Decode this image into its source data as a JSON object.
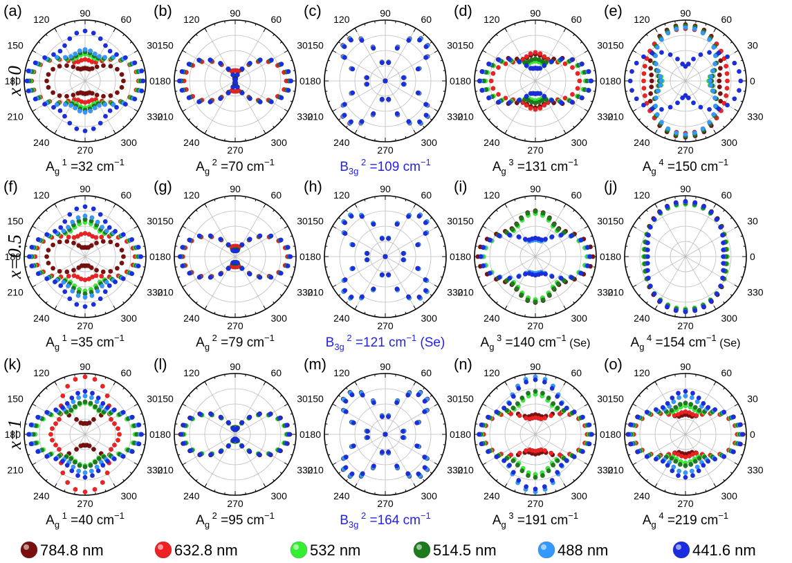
{
  "angle_labels": [
    "0",
    "30",
    "60",
    "90",
    "120",
    "150",
    "180",
    "210",
    "240",
    "270",
    "300",
    "330"
  ],
  "row_labels": [
    "x=0",
    "x=0.5",
    "x=1"
  ],
  "colors": {
    "784.8 nm": "#7a0f0f",
    "632.8 nm": "#ee2222",
    "532 nm": "#33ee33",
    "514.5 nm": "#1d7a1d",
    "488 nm": "#3399ff",
    "441.6 nm": "#1a2ee0",
    "b3g_caption": "#2222ee"
  },
  "legend": [
    "784.8 nm",
    "632.8 nm",
    "532 nm",
    "514.5 nm",
    "488 nm",
    "441.6 nm"
  ],
  "chart_data": [
    {
      "panel": "(a)",
      "row": "x=0",
      "type": "polar-scatter",
      "mode": "Ag",
      "sup": "1",
      "value": "32",
      "unit": "cm",
      "note": "",
      "caption_color": "#000000",
      "shape": "ag1",
      "series": [
        {
          "name": "784.8 nm",
          "a": 0.62,
          "b": 0.18
        },
        {
          "name": "632.8 nm",
          "a": 0.88,
          "b": 0.33
        },
        {
          "name": "532 nm",
          "a": 0.9,
          "b": 0.42
        },
        {
          "name": "514.5 nm",
          "a": 0.92,
          "b": 0.46
        },
        {
          "name": "488 nm",
          "a": 0.95,
          "b": 0.5
        },
        {
          "name": "441.6 nm",
          "a": 0.98,
          "b": 0.82
        }
      ]
    },
    {
      "panel": "(b)",
      "row": "x=0",
      "type": "polar-scatter",
      "mode": "Ag",
      "sup": "2",
      "value": "70",
      "unit": "cm",
      "note": "",
      "caption_color": "#000000",
      "shape": "ag2",
      "series": [
        {
          "name": "784.8 nm",
          "a": 0.92,
          "b": 0.05
        },
        {
          "name": "632.8 nm",
          "a": 0.88,
          "b": 0.18
        },
        {
          "name": "532 nm",
          "a": 0.93,
          "b": 0.02
        },
        {
          "name": "514.5 nm",
          "a": 0.93,
          "b": 0.02
        },
        {
          "name": "488 nm",
          "a": 0.95,
          "b": 0.02
        },
        {
          "name": "441.6 nm",
          "a": 0.96,
          "b": 0.0
        }
      ]
    },
    {
      "panel": "(c)",
      "row": "x=0",
      "type": "polar-scatter",
      "mode": "B3g",
      "sup": "2",
      "value": "109",
      "unit": "cm",
      "note": "",
      "caption_color": "#2222ee",
      "shape": "b3g",
      "series": [
        {
          "name": "784.8 nm",
          "a": 0.95,
          "b": 0
        },
        {
          "name": "632.8 nm",
          "a": 0.97,
          "b": 0
        },
        {
          "name": "532 nm",
          "a": 0.95,
          "b": 0
        },
        {
          "name": "514.5 nm",
          "a": 0.94,
          "b": 0
        },
        {
          "name": "488 nm",
          "a": 0.96,
          "b": 0
        },
        {
          "name": "441.6 nm",
          "a": 0.93,
          "b": 0
        }
      ]
    },
    {
      "panel": "(d)",
      "row": "x=0",
      "type": "polar-scatter",
      "mode": "Ag",
      "sup": "3",
      "value": "131",
      "unit": "cm",
      "note": "",
      "caption_color": "#000000",
      "shape": "ag1",
      "series": [
        {
          "name": "784.8 nm",
          "a": 0.92,
          "b": 0.42
        },
        {
          "name": "632.8 nm",
          "a": 0.72,
          "b": 0.45
        },
        {
          "name": "532 nm",
          "a": 0.82,
          "b": 0.3
        },
        {
          "name": "514.5 nm",
          "a": 0.85,
          "b": 0.34
        },
        {
          "name": "488 nm",
          "a": 0.9,
          "b": 0.18
        },
        {
          "name": "441.6 nm",
          "a": 0.92,
          "b": 0.18
        }
      ]
    },
    {
      "panel": "(e)",
      "row": "x=0",
      "type": "polar-scatter",
      "mode": "Ag",
      "sup": "4",
      "value": "150",
      "unit": "cm",
      "note": "",
      "caption_color": "#000000",
      "shape": "vert",
      "series": [
        {
          "name": "784.8 nm",
          "a": 0.58,
          "b": 0.97
        },
        {
          "name": "632.8 nm",
          "a": 0.72,
          "b": 0.9
        },
        {
          "name": "532 nm",
          "a": 0.4,
          "b": 0.95
        },
        {
          "name": "514.5 nm",
          "a": 0.45,
          "b": 0.95
        },
        {
          "name": "488 nm",
          "a": 0.42,
          "b": 0.92
        },
        {
          "name": "441.6 nm",
          "a": 0.95,
          "b": 0.25
        }
      ]
    },
    {
      "panel": "(f)",
      "row": "x=0.5",
      "type": "polar-scatter",
      "mode": "Ag",
      "sup": "1",
      "value": "35",
      "unit": "cm",
      "note": "",
      "caption_color": "#000000",
      "shape": "ag1",
      "series": [
        {
          "name": "784.8 nm",
          "a": 0.62,
          "b": 0.12
        },
        {
          "name": "632.8 nm",
          "a": 0.82,
          "b": 0.36
        },
        {
          "name": "532 nm",
          "a": 0.86,
          "b": 0.55
        },
        {
          "name": "514.5 nm",
          "a": 0.88,
          "b": 0.6
        },
        {
          "name": "488 nm",
          "a": 0.9,
          "b": 0.66
        },
        {
          "name": "441.6 nm",
          "a": 0.92,
          "b": 0.82
        }
      ]
    },
    {
      "panel": "(g)",
      "row": "x=0.5",
      "type": "polar-scatter",
      "mode": "Ag",
      "sup": "2",
      "value": "79",
      "unit": "cm",
      "note": "",
      "caption_color": "#000000",
      "shape": "ag2",
      "series": [
        {
          "name": "784.8 nm",
          "a": 0.92,
          "b": 0.15
        },
        {
          "name": "632.8 nm",
          "a": 0.9,
          "b": 0.18
        },
        {
          "name": "532 nm",
          "a": 0.93,
          "b": 0.12
        },
        {
          "name": "514.5 nm",
          "a": 0.93,
          "b": 0.12
        },
        {
          "name": "488 nm",
          "a": 0.94,
          "b": 0.1
        },
        {
          "name": "441.6 nm",
          "a": 0.95,
          "b": 0.1
        }
      ]
    },
    {
      "panel": "(h)",
      "row": "x=0.5",
      "type": "polar-scatter",
      "mode": "B3g",
      "sup": "2",
      "value": "121",
      "unit": "cm",
      "note": "(Se)",
      "caption_color": "#2222ee",
      "shape": "b3g",
      "series": [
        {
          "name": "784.8 nm",
          "a": 0.95,
          "b": 0
        },
        {
          "name": "632.8 nm",
          "a": 0.94,
          "b": 0
        },
        {
          "name": "532 nm",
          "a": 0.93,
          "b": 0
        },
        {
          "name": "514.5 nm",
          "a": 0.93,
          "b": 0
        },
        {
          "name": "488 nm",
          "a": 0.95,
          "b": 0
        },
        {
          "name": "441.6 nm",
          "a": 0.92,
          "b": 0
        }
      ]
    },
    {
      "panel": "(i)",
      "row": "x=0.5",
      "type": "polar-scatter",
      "mode": "Ag",
      "sup": "3",
      "value": "140",
      "unit": "cm",
      "note": "(Se)",
      "caption_color": "#000000",
      "shape": "ag1",
      "series": [
        {
          "name": "784.8 nm",
          "a": 0.95,
          "b": 0.75
        },
        {
          "name": "632.8 nm",
          "a": 0.9,
          "b": 0.72
        },
        {
          "name": "532 nm",
          "a": 0.85,
          "b": 0.7
        },
        {
          "name": "514.5 nm",
          "a": 0.9,
          "b": 0.74
        },
        {
          "name": "488 nm",
          "a": 0.88,
          "b": 0.25
        },
        {
          "name": "441.6 nm",
          "a": 0.9,
          "b": 0.28
        }
      ]
    },
    {
      "panel": "(j)",
      "row": "x=0.5",
      "type": "polar-scatter",
      "mode": "Ag",
      "sup": "4",
      "value": "154",
      "unit": "cm",
      "note": "(Se)",
      "caption_color": "#000000",
      "shape": "vert",
      "series": [
        {
          "name": "784.8 nm",
          "a": 0.7,
          "b": 0.95
        },
        {
          "name": "632.8 nm",
          "a": 0.68,
          "b": 0.93
        },
        {
          "name": "532 nm",
          "a": 0.72,
          "b": 0.9
        },
        {
          "name": "514.5 nm",
          "a": 0.7,
          "b": 0.92
        },
        {
          "name": "488 nm",
          "a": 0.66,
          "b": 0.94
        },
        {
          "name": "441.6 nm",
          "a": 0.65,
          "b": 0.95
        }
      ]
    },
    {
      "panel": "(k)",
      "row": "x=1",
      "type": "polar-scatter",
      "mode": "Ag",
      "sup": "1",
      "value": "40",
      "unit": "cm",
      "note": "",
      "caption_color": "#000000",
      "shape": "ag1",
      "series": [
        {
          "name": "784.8 nm",
          "a": 0.92,
          "b": 0.15
        },
        {
          "name": "632.8 nm",
          "a": 0.55,
          "b": 0.95
        },
        {
          "name": "532 nm",
          "a": 0.82,
          "b": 0.5
        },
        {
          "name": "514.5 nm",
          "a": 0.85,
          "b": 0.52
        },
        {
          "name": "488 nm",
          "a": 0.9,
          "b": 0.62
        },
        {
          "name": "441.6 nm",
          "a": 0.93,
          "b": 0.7
        }
      ]
    },
    {
      "panel": "(l)",
      "row": "x=1",
      "type": "polar-scatter",
      "mode": "Ag",
      "sup": "2",
      "value": "95",
      "unit": "cm",
      "note": "",
      "caption_color": "#000000",
      "shape": "ag2",
      "series": [
        {
          "name": "784.8 nm",
          "a": 0.94,
          "b": 0.1
        },
        {
          "name": "632.8 nm",
          "a": 0.9,
          "b": 0.12
        },
        {
          "name": "532 nm",
          "a": 0.88,
          "b": 0.1
        },
        {
          "name": "514.5 nm",
          "a": 0.9,
          "b": 0.12
        },
        {
          "name": "488 nm",
          "a": 0.92,
          "b": 0.1
        },
        {
          "name": "441.6 nm",
          "a": 0.93,
          "b": 0.08
        }
      ]
    },
    {
      "panel": "(m)",
      "row": "x=1",
      "type": "polar-scatter",
      "mode": "B3g",
      "sup": "2",
      "value": "164",
      "unit": "cm",
      "note": "",
      "caption_color": "#2222ee",
      "shape": "b3g",
      "series": [
        {
          "name": "784.8 nm",
          "a": 0.96,
          "b": 0
        },
        {
          "name": "632.8 nm",
          "a": 0.94,
          "b": 0
        },
        {
          "name": "532 nm",
          "a": 0.92,
          "b": 0
        },
        {
          "name": "514.5 nm",
          "a": 0.93,
          "b": 0
        },
        {
          "name": "488 nm",
          "a": 0.95,
          "b": 0
        },
        {
          "name": "441.6 nm",
          "a": 0.9,
          "b": 0
        }
      ]
    },
    {
      "panel": "(n)",
      "row": "x=1",
      "type": "polar-scatter",
      "mode": "Ag",
      "sup": "3",
      "value": "191",
      "unit": "cm",
      "note": "",
      "caption_color": "#000000",
      "shape": "ag1",
      "series": [
        {
          "name": "784.8 nm",
          "a": 0.92,
          "b": 0.3
        },
        {
          "name": "632.8 nm",
          "a": 0.85,
          "b": 0.25
        },
        {
          "name": "532 nm",
          "a": 0.88,
          "b": 0.65
        },
        {
          "name": "514.5 nm",
          "a": 0.9,
          "b": 0.7
        },
        {
          "name": "488 nm",
          "a": 0.92,
          "b": 0.95
        },
        {
          "name": "441.6 nm",
          "a": 0.93,
          "b": 0.9
        }
      ]
    },
    {
      "panel": "(o)",
      "row": "x=1",
      "type": "polar-scatter",
      "mode": "Ag",
      "sup": "4",
      "value": "219",
      "unit": "cm",
      "note": "",
      "caption_color": "#000000",
      "shape": "ag1",
      "series": [
        {
          "name": "784.8 nm",
          "a": 0.95,
          "b": 0.3
        },
        {
          "name": "632.8 nm",
          "a": 0.85,
          "b": 0.35
        },
        {
          "name": "532 nm",
          "a": 0.88,
          "b": 0.45
        },
        {
          "name": "514.5 nm",
          "a": 0.9,
          "b": 0.5
        },
        {
          "name": "488 nm",
          "a": 0.92,
          "b": 0.62
        },
        {
          "name": "441.6 nm",
          "a": 0.94,
          "b": 0.7
        }
      ]
    }
  ]
}
